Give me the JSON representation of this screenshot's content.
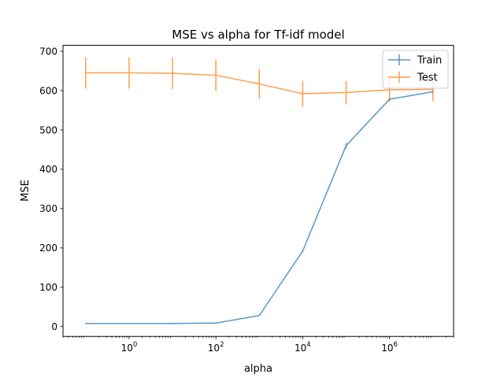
{
  "chart_data": {
    "type": "line",
    "title": "MSE vs alpha for Tf-idf model",
    "xlabel": "alpha",
    "ylabel": "MSE",
    "xscale": "log",
    "xlim": [
      0.03,
      30000000
    ],
    "ylim": [
      -25,
      715
    ],
    "x_ticks": [
      {
        "value": 1,
        "base": "10",
        "exp": "0"
      },
      {
        "value": 100,
        "base": "10",
        "exp": "2"
      },
      {
        "value": 10000,
        "base": "10",
        "exp": "4"
      },
      {
        "value": 1000000,
        "base": "10",
        "exp": "6"
      }
    ],
    "y_ticks": [
      0,
      100,
      200,
      300,
      400,
      500,
      600,
      700
    ],
    "x": [
      0.1,
      1,
      10,
      100,
      1000,
      10000,
      100000,
      1000000,
      10000000
    ],
    "series": [
      {
        "name": "Train",
        "color": "#1f77b4",
        "values": [
          8,
          8,
          8,
          9,
          28,
          192,
          460,
          578,
          597
        ],
        "errors": [
          1,
          1,
          1,
          1,
          1,
          2,
          7,
          5,
          5
        ]
      },
      {
        "name": "Test",
        "color": "#ff7f0e",
        "values": [
          645,
          645,
          644,
          639,
          617,
          592,
          595,
          602,
          603
        ],
        "errors": [
          40,
          40,
          40,
          40,
          38,
          33,
          30,
          30,
          30
        ]
      }
    ],
    "legend_position": "top-right",
    "grid": false
  }
}
